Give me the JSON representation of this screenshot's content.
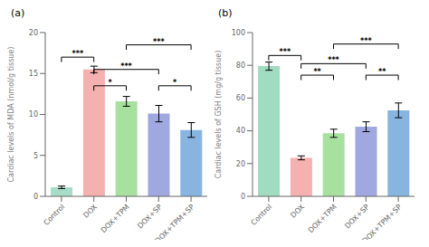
{
  "chart_data": [
    {
      "type": "bar",
      "title": "(a)",
      "ylabel": "Cardiac levels of MDA (nmol/g tissue)",
      "categories": [
        "Control",
        "DOX",
        "DOX+TPM",
        "DOX+SP",
        "DOX+TPM+SP"
      ],
      "values": [
        1.1,
        15.5,
        11.6,
        10.1,
        8.1
      ],
      "errors": [
        0.15,
        0.4,
        0.6,
        1.0,
        0.9
      ],
      "colors": [
        "#a8dcc8",
        "#f5b0b0",
        "#a8e0a0",
        "#a0a8e0",
        "#88b4e0"
      ],
      "ylim": [
        0,
        20
      ],
      "yticks": [
        0,
        5,
        10,
        15,
        20
      ],
      "grid": false,
      "annotations": [
        {
          "from": "Control",
          "to": "DOX",
          "y": 17.0,
          "label": "***"
        },
        {
          "from": "DOX",
          "to": "DOX+TPM",
          "y": 13.5,
          "label": "*"
        },
        {
          "from": "DOX+SP",
          "to": "DOX+TPM+SP",
          "y": 13.5,
          "label": "*"
        },
        {
          "from": "DOX",
          "to": "DOX+SP",
          "y": 15.5,
          "label": "***"
        },
        {
          "from": "DOX+TPM",
          "to": "DOX+TPM+SP",
          "y": 18.5,
          "label": "***"
        }
      ]
    },
    {
      "type": "bar",
      "title": "(b)",
      "ylabel": "Cardiac levels of GSH (mg/g tissue)",
      "categories": [
        "Control",
        "DOX",
        "DOX+TPM",
        "DOX+SP",
        "DOX+TPM+SP"
      ],
      "values": [
        79.5,
        23.5,
        38.5,
        42.5,
        52.5
      ],
      "errors": [
        2.5,
        1.2,
        2.5,
        3.0,
        4.5
      ],
      "colors": [
        "#a0dcc0",
        "#f5b0b0",
        "#a8e0a0",
        "#a0a8e0",
        "#88b4e0"
      ],
      "ylim": [
        0,
        100
      ],
      "yticks": [
        0,
        20,
        40,
        60,
        80,
        100
      ],
      "grid": false,
      "annotations": [
        {
          "from": "Control",
          "to": "DOX",
          "y": 86,
          "label": "***"
        },
        {
          "from": "DOX",
          "to": "DOX+TPM",
          "y": 74,
          "label": "**"
        },
        {
          "from": "DOX+SP",
          "to": "DOX+TPM+SP",
          "y": 74,
          "label": "**"
        },
        {
          "from": "DOX",
          "to": "DOX+SP",
          "y": 81,
          "label": "***"
        },
        {
          "from": "DOX+TPM",
          "to": "DOX+TPM+SP",
          "y": 93,
          "label": "***"
        }
      ]
    }
  ]
}
